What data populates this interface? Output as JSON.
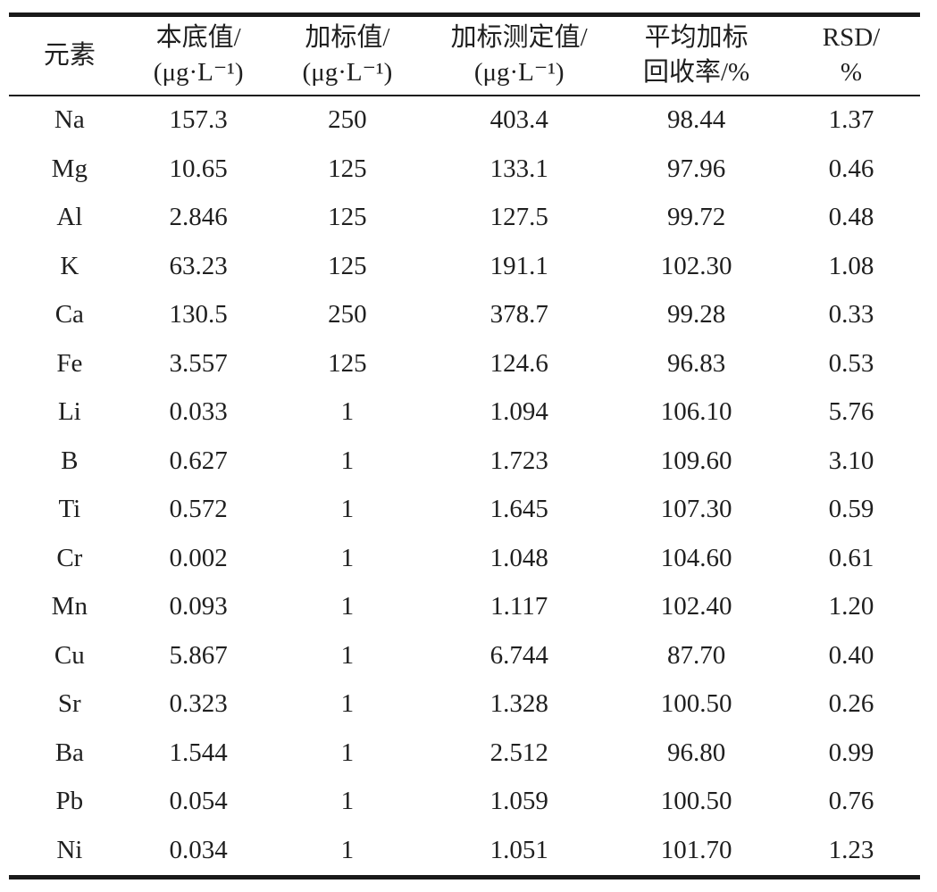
{
  "colors": {
    "background": "#ffffff",
    "text": "#1f1f1f",
    "rule": "#1a1a1a"
  },
  "table": {
    "columns": [
      {
        "id": "element",
        "line1": "元素",
        "line2": ""
      },
      {
        "id": "background-value",
        "line1": "本底值/",
        "line2": "(μg·L⁻¹)"
      },
      {
        "id": "spiked-value",
        "line1": "加标值/",
        "line2": "(μg·L⁻¹)"
      },
      {
        "id": "spiked-measured-value",
        "line1": "加标测定值/",
        "line2": "(μg·L⁻¹)"
      },
      {
        "id": "avg-spike-recovery",
        "line1": "平均加标",
        "line2": "回收率/%"
      },
      {
        "id": "rsd",
        "line1": "RSD/",
        "line2": "%"
      }
    ],
    "rows": [
      [
        "Na",
        "157.3",
        "250",
        "403.4",
        "98.44",
        "1.37"
      ],
      [
        "Mg",
        "10.65",
        "125",
        "133.1",
        "97.96",
        "0.46"
      ],
      [
        "Al",
        "2.846",
        "125",
        "127.5",
        "99.72",
        "0.48"
      ],
      [
        "K",
        "63.23",
        "125",
        "191.1",
        "102.30",
        "1.08"
      ],
      [
        "Ca",
        "130.5",
        "250",
        "378.7",
        "99.28",
        "0.33"
      ],
      [
        "Fe",
        "3.557",
        "125",
        "124.6",
        "96.83",
        "0.53"
      ],
      [
        "Li",
        "0.033",
        "1",
        "1.094",
        "106.10",
        "5.76"
      ],
      [
        "B",
        "0.627",
        "1",
        "1.723",
        "109.60",
        "3.10"
      ],
      [
        "Ti",
        "0.572",
        "1",
        "1.645",
        "107.30",
        "0.59"
      ],
      [
        "Cr",
        "0.002",
        "1",
        "1.048",
        "104.60",
        "0.61"
      ],
      [
        "Mn",
        "0.093",
        "1",
        "1.117",
        "102.40",
        "1.20"
      ],
      [
        "Cu",
        "5.867",
        "1",
        "6.744",
        "87.70",
        "0.40"
      ],
      [
        "Sr",
        "0.323",
        "1",
        "1.328",
        "100.50",
        "0.26"
      ],
      [
        "Ba",
        "1.544",
        "1",
        "2.512",
        "96.80",
        "0.99"
      ],
      [
        "Pb",
        "0.054",
        "1",
        "1.059",
        "100.50",
        "0.76"
      ],
      [
        "Ni",
        "0.034",
        "1",
        "1.051",
        "101.70",
        "1.23"
      ]
    ]
  },
  "chart_data": {
    "type": "table",
    "columns": [
      "元素",
      "本底值/(μg·L⁻¹)",
      "加标值/(μg·L⁻¹)",
      "加标测定值/(μg·L⁻¹)",
      "平均加标回收率/%",
      "RSD/%"
    ],
    "rows": [
      [
        "Na",
        157.3,
        250,
        403.4,
        98.44,
        1.37
      ],
      [
        "Mg",
        10.65,
        125,
        133.1,
        97.96,
        0.46
      ],
      [
        "Al",
        2.846,
        125,
        127.5,
        99.72,
        0.48
      ],
      [
        "K",
        63.23,
        125,
        191.1,
        102.3,
        1.08
      ],
      [
        "Ca",
        130.5,
        250,
        378.7,
        99.28,
        0.33
      ],
      [
        "Fe",
        3.557,
        125,
        124.6,
        96.83,
        0.53
      ],
      [
        "Li",
        0.033,
        1,
        1.094,
        106.1,
        5.76
      ],
      [
        "B",
        0.627,
        1,
        1.723,
        109.6,
        3.1
      ],
      [
        "Ti",
        0.572,
        1,
        1.645,
        107.3,
        0.59
      ],
      [
        "Cr",
        0.002,
        1,
        1.048,
        104.6,
        0.61
      ],
      [
        "Mn",
        0.093,
        1,
        1.117,
        102.4,
        1.2
      ],
      [
        "Cu",
        5.867,
        1,
        6.744,
        87.7,
        0.4
      ],
      [
        "Sr",
        0.323,
        1,
        1.328,
        100.5,
        0.26
      ],
      [
        "Ba",
        1.544,
        1,
        2.512,
        96.8,
        0.99
      ],
      [
        "Pb",
        0.054,
        1,
        1.059,
        100.5,
        0.76
      ],
      [
        "Ni",
        0.034,
        1,
        1.051,
        101.7,
        1.23
      ]
    ]
  }
}
